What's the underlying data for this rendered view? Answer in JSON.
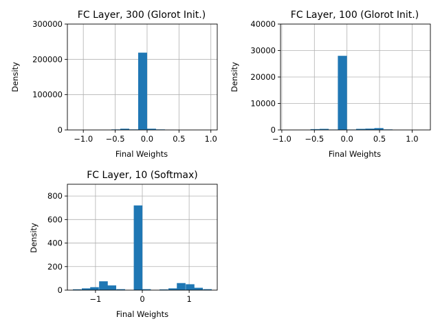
{
  "chart_data": [
    {
      "type": "bar",
      "title": "FC Layer, 300 (Glorot Init.)",
      "xlabel": "Final Weights",
      "ylabel": "Density",
      "xlim": [
        -1.25,
        1.1
      ],
      "ylim": [
        0,
        300000
      ],
      "xticks": [
        -1.0,
        -0.5,
        0.0,
        0.5,
        1.0
      ],
      "xtick_labels": [
        "−1.0",
        "−0.5",
        "0.0",
        "0.5",
        "1.0"
      ],
      "yticks": [
        0,
        100000,
        200000,
        300000
      ],
      "ytick_labels": [
        "0",
        "100000",
        "200000",
        "300000"
      ],
      "grid": true,
      "color": "#1f77b4",
      "bin_width": 0.14,
      "bins": [
        {
          "x": -0.49,
          "value": 1500
        },
        {
          "x": -0.35,
          "value": 3500
        },
        {
          "x": -0.21,
          "value": 1500
        },
        {
          "x": -0.07,
          "value": 219000
        },
        {
          "x": 0.07,
          "value": 3500
        },
        {
          "x": 0.21,
          "value": 1500
        },
        {
          "x": 0.35,
          "value": 500
        }
      ]
    },
    {
      "type": "bar",
      "title": "FC Layer, 100 (Glorot Init.)",
      "xlabel": "Final Weights",
      "ylabel": "Density",
      "xlim": [
        -1.02,
        1.28
      ],
      "ylim": [
        0,
        40000
      ],
      "xticks": [
        -1.0,
        -0.5,
        0.0,
        0.5,
        1.0
      ],
      "xtick_labels": [
        "−1.0",
        "−0.5",
        "0.0",
        "0.5",
        "1.0"
      ],
      "yticks": [
        0,
        10000,
        20000,
        30000,
        40000
      ],
      "ytick_labels": [
        "0",
        "10000",
        "20000",
        "30000",
        "40000"
      ],
      "grid": true,
      "color": "#1f77b4",
      "bin_width": 0.14,
      "bins": [
        {
          "x": -0.49,
          "value": 300
        },
        {
          "x": -0.35,
          "value": 400
        },
        {
          "x": -0.21,
          "value": 150
        },
        {
          "x": -0.07,
          "value": 28000
        },
        {
          "x": 0.07,
          "value": 150
        },
        {
          "x": 0.21,
          "value": 400
        },
        {
          "x": 0.35,
          "value": 500
        },
        {
          "x": 0.49,
          "value": 700
        },
        {
          "x": 0.63,
          "value": 200
        }
      ]
    },
    {
      "type": "bar",
      "title": "FC Layer, 10 (Softmax)",
      "xlabel": "Final Weights",
      "ylabel": "Density",
      "xlim": [
        -1.6,
        1.6
      ],
      "ylim": [
        0,
        900
      ],
      "xticks": [
        -1,
        0,
        1
      ],
      "xtick_labels": [
        "−1",
        "0",
        "1"
      ],
      "yticks": [
        0,
        200,
        400,
        600,
        800
      ],
      "ytick_labels": [
        "0",
        "200",
        "400",
        "600",
        "800"
      ],
      "grid": true,
      "color": "#1f77b4",
      "bin_width": 0.185,
      "bins": [
        {
          "x": -1.39,
          "value": 7
        },
        {
          "x": -1.2,
          "value": 15
        },
        {
          "x": -1.02,
          "value": 25
        },
        {
          "x": -0.83,
          "value": 75
        },
        {
          "x": -0.65,
          "value": 40
        },
        {
          "x": -0.46,
          "value": 8
        },
        {
          "x": -0.09,
          "value": 720
        },
        {
          "x": 0.09,
          "value": 8
        },
        {
          "x": 0.46,
          "value": 6
        },
        {
          "x": 0.65,
          "value": 15
        },
        {
          "x": 0.83,
          "value": 60
        },
        {
          "x": 1.02,
          "value": 50
        },
        {
          "x": 1.2,
          "value": 20
        },
        {
          "x": 1.39,
          "value": 8
        }
      ]
    }
  ]
}
